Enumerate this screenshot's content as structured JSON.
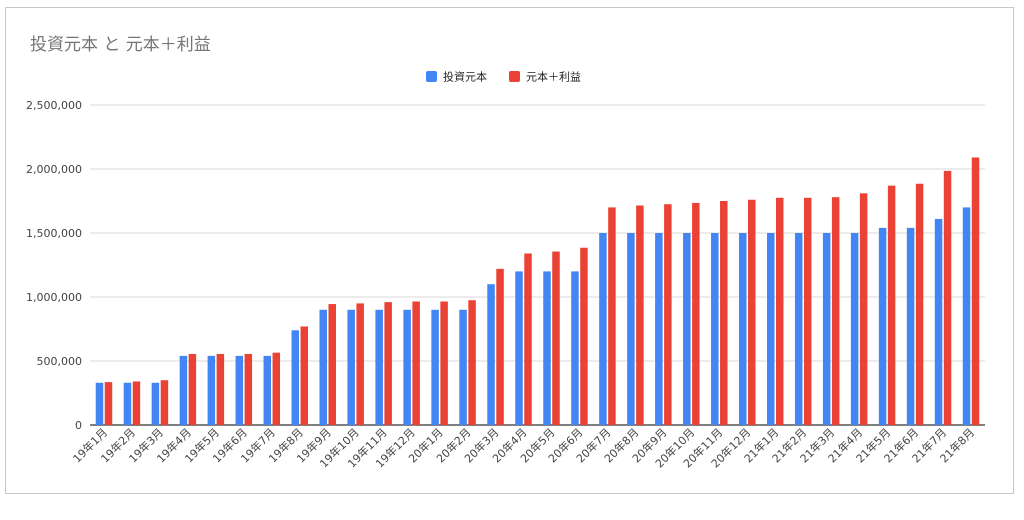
{
  "chart_data": {
    "type": "bar",
    "title": "投資元本 と 元本＋利益",
    "xlabel": "",
    "ylabel": "",
    "ylim": [
      0,
      2500000
    ],
    "y_ticks": [
      "0",
      "500,000",
      "1,000,000",
      "1,500,000",
      "2,000,000",
      "2,500,000"
    ],
    "y_tick_values": [
      0,
      500000,
      1000000,
      1500000,
      2000000,
      2500000
    ],
    "grid": true,
    "legend_position": "top",
    "categories": [
      "19年1月",
      "19年2月",
      "19年3月",
      "19年4月",
      "19年5月",
      "19年6月",
      "19年7月",
      "19年8月",
      "19年9月",
      "19年10月",
      "19年11月",
      "19年12月",
      "20年1月",
      "20年2月",
      "20年3月",
      "20年4月",
      "20年5月",
      "20年6月",
      "20年7月",
      "20年8月",
      "20年9月",
      "20年10月",
      "20年11月",
      "20年12月",
      "21年1月",
      "21年2月",
      "21年3月",
      "21年4月",
      "21年5月",
      "21年6月",
      "21年7月",
      "21年8月"
    ],
    "series": [
      {
        "name": "投資元本",
        "color": "#4285f4",
        "values": [
          330000,
          330000,
          330000,
          540000,
          540000,
          540000,
          540000,
          740000,
          900000,
          900000,
          900000,
          900000,
          900000,
          900000,
          1100000,
          1200000,
          1200000,
          1200000,
          1500000,
          1500000,
          1500000,
          1500000,
          1500000,
          1500000,
          1500000,
          1500000,
          1500000,
          1500000,
          1540000,
          1540000,
          1610000,
          1700000
        ]
      },
      {
        "name": "元本＋利益",
        "color": "#ea4335",
        "values": [
          335000,
          340000,
          350000,
          555000,
          555000,
          555000,
          565000,
          770000,
          945000,
          950000,
          960000,
          965000,
          965000,
          975000,
          1220000,
          1340000,
          1355000,
          1385000,
          1700000,
          1715000,
          1725000,
          1735000,
          1750000,
          1760000,
          1775000,
          1775000,
          1780000,
          1810000,
          1870000,
          1885000,
          1985000,
          2090000
        ]
      }
    ]
  }
}
